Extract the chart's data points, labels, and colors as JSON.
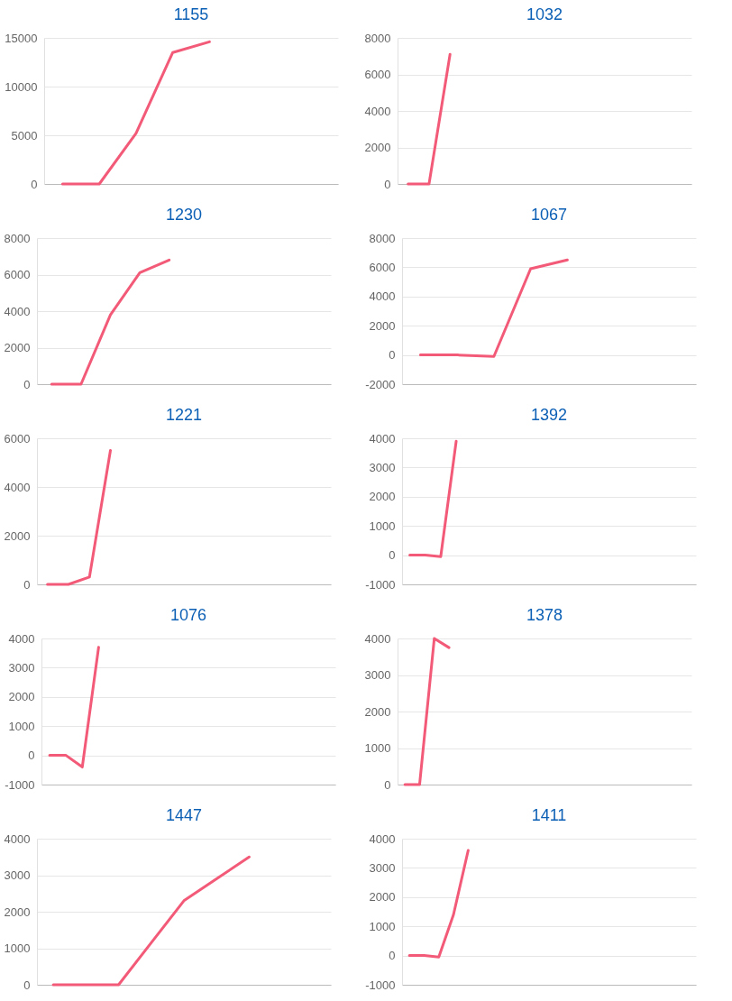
{
  "chart_data": [
    {
      "type": "line",
      "title": "1155",
      "categories": [
        null,
        null,
        null,
        null,
        null,
        null,
        null,
        null
      ],
      "values": [
        0,
        0,
        5200,
        13500,
        14600,
        null,
        null,
        null
      ],
      "color": "#f25a78",
      "ylim": [
        0,
        15000
      ],
      "yticks": [
        0,
        5000,
        10000,
        15000
      ],
      "grid": "y",
      "tick_labels": "y",
      "line_style": "solid"
    },
    {
      "type": "line",
      "title": "1032",
      "categories": [
        null,
        null,
        null,
        null,
        null,
        null,
        null,
        null,
        null,
        null,
        null,
        null,
        null,
        null
      ],
      "values": [
        0,
        0,
        7100,
        null,
        null,
        null,
        null,
        null,
        null,
        null,
        null,
        null,
        null,
        null
      ],
      "color": "#f25a78",
      "ylim": [
        0,
        8000
      ],
      "yticks": [
        0,
        2000,
        4000,
        6000,
        8000
      ],
      "grid": "y",
      "tick_labels": "y",
      "line_style": "solid"
    },
    {
      "type": "line",
      "title": "1230",
      "categories": [
        null,
        null,
        null,
        null,
        null,
        null,
        null,
        null,
        null,
        null
      ],
      "values": [
        0,
        0,
        3800,
        6100,
        6800,
        null,
        null,
        null,
        null,
        null
      ],
      "color": "#f25a78",
      "ylim": [
        0,
        8000
      ],
      "yticks": [
        0,
        2000,
        4000,
        6000,
        8000
      ],
      "grid": "y",
      "tick_labels": "y",
      "line_style": "solid"
    },
    {
      "type": "line",
      "title": "1067",
      "categories": [
        null,
        null,
        null,
        null,
        null,
        null,
        null,
        null
      ],
      "values": [
        0,
        0,
        -100,
        5900,
        6500,
        null,
        null,
        null
      ],
      "color": "#f25a78",
      "ylim": [
        -2000,
        8000
      ],
      "yticks": [
        -2000,
        0,
        2000,
        4000,
        6000,
        8000
      ],
      "grid": "y",
      "tick_labels": "y",
      "line_style": "solid"
    },
    {
      "type": "line",
      "title": "1221",
      "categories": [
        null,
        null,
        null,
        null,
        null,
        null,
        null,
        null,
        null,
        null,
        null,
        null,
        null,
        null
      ],
      "values": [
        0,
        0,
        300,
        5500,
        null,
        null,
        null,
        null,
        null,
        null,
        null,
        null,
        null,
        null
      ],
      "color": "#f25a78",
      "ylim": [
        0,
        6000
      ],
      "yticks": [
        0,
        2000,
        4000,
        6000
      ],
      "grid": "y",
      "tick_labels": "y",
      "line_style": "solid"
    },
    {
      "type": "line",
      "title": "1392",
      "categories": [
        null,
        null,
        null,
        null,
        null,
        null,
        null,
        null,
        null,
        null,
        null,
        null,
        null,
        null,
        null,
        null,
        null,
        null,
        null
      ],
      "values": [
        0,
        0,
        -50,
        3900,
        null,
        null,
        null,
        null,
        null,
        null,
        null,
        null,
        null,
        null,
        null,
        null,
        null,
        null,
        null
      ],
      "color": "#f25a78",
      "ylim": [
        -1000,
        4000
      ],
      "yticks": [
        -1000,
        0,
        1000,
        2000,
        3000,
        4000
      ],
      "grid": "y",
      "tick_labels": "y",
      "line_style": "solid"
    },
    {
      "type": "line",
      "title": "1076",
      "categories": [
        null,
        null,
        null,
        null,
        null,
        null,
        null,
        null,
        null,
        null,
        null,
        null,
        null,
        null,
        null,
        null,
        null,
        null
      ],
      "values": [
        0,
        0,
        -400,
        3700,
        null,
        null,
        null,
        null,
        null,
        null,
        null,
        null,
        null,
        null,
        null,
        null,
        null,
        null
      ],
      "color": "#f25a78",
      "ylim": [
        -1000,
        4000
      ],
      "yticks": [
        -1000,
        0,
        1000,
        2000,
        3000,
        4000
      ],
      "grid": "y",
      "tick_labels": "y",
      "line_style": "solid"
    },
    {
      "type": "line",
      "title": "1378",
      "categories": [
        null,
        null,
        null,
        null,
        null,
        null,
        null,
        null,
        null,
        null,
        null,
        null,
        null,
        null,
        null,
        null,
        null,
        null,
        null,
        null
      ],
      "values": [
        0,
        0,
        4000,
        3750,
        null,
        null,
        null,
        null,
        null,
        null,
        null,
        null,
        null,
        null,
        null,
        null,
        null,
        null,
        null,
        null
      ],
      "color": "#f25a78",
      "ylim": [
        0,
        4000
      ],
      "yticks": [
        0,
        1000,
        2000,
        3000,
        4000
      ],
      "grid": "y",
      "tick_labels": "y",
      "line_style": "solid"
    },
    {
      "type": "line",
      "title": "1447",
      "categories": [
        null,
        null,
        null,
        null,
        null,
        null,
        null,
        null,
        null
      ],
      "values": [
        0,
        0,
        0,
        1150,
        2300,
        2900,
        3500,
        null,
        null
      ],
      "color": "#f25a78",
      "ylim": [
        0,
        4000
      ],
      "yticks": [
        0,
        1000,
        2000,
        3000,
        4000
      ],
      "grid": "y",
      "tick_labels": "y",
      "line_style": "solid"
    },
    {
      "type": "line",
      "title": "1411",
      "categories": [
        null,
        null,
        null,
        null,
        null,
        null,
        null,
        null,
        null,
        null,
        null,
        null,
        null,
        null,
        null,
        null,
        null,
        null,
        null,
        null
      ],
      "values": [
        0,
        0,
        -50,
        1400,
        3600,
        null,
        null,
        null,
        null,
        null,
        null,
        null,
        null,
        null,
        null,
        null,
        null,
        null,
        null,
        null
      ],
      "color": "#f25a78",
      "ylim": [
        -1000,
        4000
      ],
      "yticks": [
        -1000,
        0,
        1000,
        2000,
        3000,
        4000
      ],
      "grid": "y",
      "tick_labels": "y",
      "line_style": "solid"
    }
  ]
}
